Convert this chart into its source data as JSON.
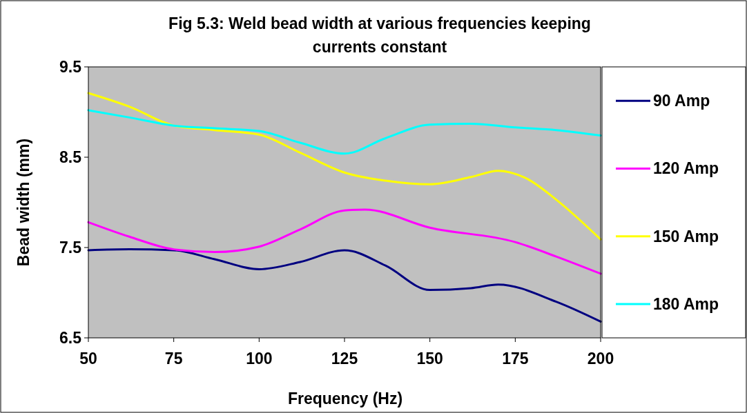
{
  "chart_data": {
    "type": "line",
    "title": "Fig 5.3: Weld bead width at various frequencies keeping currents constant",
    "xlabel": "Frequency (Hz)",
    "ylabel": "Bead width (mm)",
    "xlim": [
      50,
      200
    ],
    "xticks": [
      50,
      75,
      100,
      125,
      150,
      175,
      200
    ],
    "ylim": [
      6.5,
      9.5
    ],
    "yticks": [
      6.5,
      7.5,
      8.5,
      9.5
    ],
    "grid": false,
    "legend": "right",
    "marker": "none",
    "line_style": "solid",
    "series": [
      {
        "name": "90 Amp",
        "color": "#000080",
        "x": [
          50,
          62,
          75,
          87,
          100,
          112,
          125,
          137,
          150,
          162,
          170,
          187,
          200
        ],
        "values": [
          7.47,
          7.48,
          7.47,
          7.37,
          7.26,
          7.34,
          7.47,
          7.3,
          7.03,
          7.05,
          7.09,
          6.9,
          6.68
        ]
      },
      {
        "name": "120 Amp",
        "color": "#ff00ff",
        "x": [
          50,
          62,
          75,
          87,
          100,
          112,
          125,
          131,
          150,
          175,
          187,
          200
        ],
        "values": [
          7.78,
          7.62,
          7.48,
          7.45,
          7.51,
          7.7,
          7.91,
          7.92,
          7.72,
          7.56,
          7.4,
          7.21
        ]
      },
      {
        "name": "150 Amp",
        "color": "#ffff00",
        "x": [
          50,
          62,
          75,
          87,
          100,
          112,
          125,
          137,
          150,
          162,
          170,
          178,
          187,
          200
        ],
        "values": [
          9.21,
          9.06,
          8.85,
          8.8,
          8.75,
          8.55,
          8.33,
          8.24,
          8.2,
          8.28,
          8.35,
          8.27,
          8.03,
          7.59
        ]
      },
      {
        "name": "180 Amp",
        "color": "#00ffff",
        "x": [
          50,
          62,
          75,
          87,
          100,
          112,
          125,
          137,
          150,
          162,
          175,
          187,
          200
        ],
        "values": [
          9.02,
          8.94,
          8.85,
          8.82,
          8.79,
          8.66,
          8.54,
          8.71,
          8.86,
          8.87,
          8.83,
          8.8,
          8.74
        ]
      }
    ]
  }
}
